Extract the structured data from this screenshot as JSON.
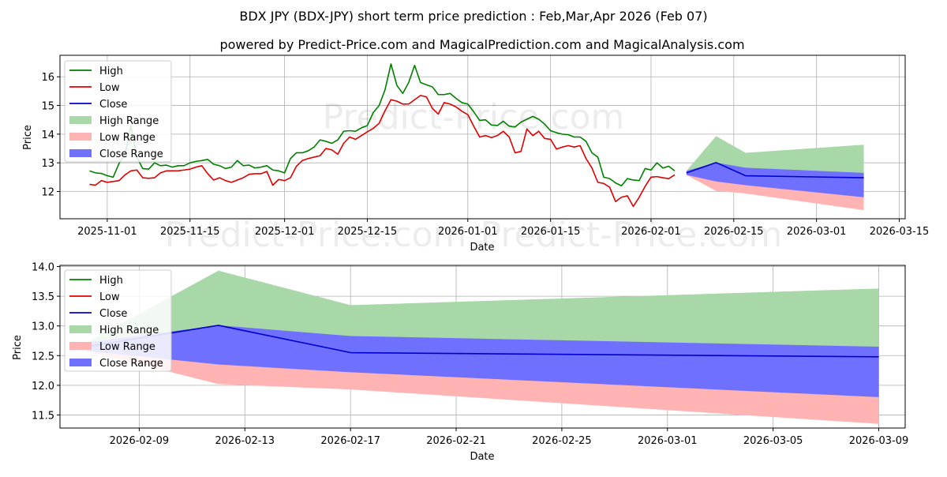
{
  "title": "BDX JPY (BDX-JPY) short term price prediction : Feb,Mar,Apr 2026 (Feb 07)",
  "subtitle": "powered by Predict-Price.com and MagicalPrediction.com and MagicalAnalysis.com",
  "watermark": "Predict-Price.com",
  "colors": {
    "high": "#008000",
    "low": "#e00000",
    "close": "#0000cc",
    "high_range": "#a8d8a8",
    "low_range": "#ffb3b3",
    "close_range": "#7070ff",
    "grid": "#b0b0b0"
  },
  "legend": [
    "High",
    "Low",
    "Close",
    "High Range",
    "Low Range",
    "Close Range"
  ],
  "chart_data": [
    {
      "type": "line",
      "name": "history-and-forecast",
      "xlabel": "Date",
      "ylabel": "Price",
      "x_start": "2025-10-29",
      "xlim": [
        "2025-10-24",
        "2026-03-16"
      ],
      "ylim": [
        11.05,
        16.75
      ],
      "xticks": [
        "2025-11-01",
        "2025-11-15",
        "2025-12-01",
        "2025-12-15",
        "2026-01-01",
        "2026-01-15",
        "2026-02-01",
        "2026-02-15",
        "2026-03-01",
        "2026-03-15"
      ],
      "yticks": [
        12,
        13,
        14,
        15,
        16
      ],
      "series": [
        {
          "name": "High",
          "values": [
            12.72,
            12.65,
            12.63,
            12.55,
            12.5,
            12.98,
            13.3,
            14.3,
            13.2,
            12.8,
            12.78,
            13.0,
            12.9,
            12.92,
            12.85,
            12.9,
            12.9,
            13.0,
            13.05,
            13.08,
            13.12,
            12.95,
            12.9,
            12.8,
            12.85,
            13.08,
            12.9,
            12.92,
            12.82,
            12.85,
            12.9,
            12.75,
            12.72,
            12.65,
            13.15,
            13.35,
            13.35,
            13.42,
            13.55,
            13.8,
            13.75,
            13.68,
            13.8,
            14.1,
            14.12,
            14.1,
            14.22,
            14.3,
            14.75,
            15.0,
            15.55,
            16.45,
            15.7,
            15.42,
            15.8,
            16.4,
            15.8,
            15.72,
            15.65,
            15.38,
            15.38,
            15.42,
            15.25,
            15.1,
            15.05,
            14.78,
            14.48,
            14.5,
            14.32,
            14.3,
            14.45,
            14.28,
            14.25,
            14.42,
            14.52,
            14.62,
            14.52,
            14.35,
            14.12,
            14.05,
            14.0,
            13.98,
            13.9,
            13.9,
            13.75,
            13.35,
            13.2,
            12.5,
            12.45,
            12.3,
            12.2,
            12.45,
            12.4,
            12.38,
            12.8,
            12.75,
            13.0,
            12.82,
            12.88,
            12.72
          ]
        },
        {
          "name": "Low",
          "values": [
            12.25,
            12.22,
            12.38,
            12.32,
            12.35,
            12.38,
            12.58,
            12.72,
            12.75,
            12.48,
            12.46,
            12.48,
            12.65,
            12.72,
            12.72,
            12.72,
            12.75,
            12.78,
            12.85,
            12.9,
            12.62,
            12.4,
            12.48,
            12.38,
            12.32,
            12.4,
            12.48,
            12.6,
            12.62,
            12.62,
            12.7,
            12.22,
            12.42,
            12.38,
            12.48,
            12.88,
            13.08,
            13.15,
            13.2,
            13.25,
            13.5,
            13.45,
            13.3,
            13.68,
            13.9,
            13.82,
            13.95,
            14.08,
            14.2,
            14.38,
            14.82,
            15.2,
            15.15,
            15.05,
            15.05,
            15.2,
            15.35,
            15.3,
            14.9,
            14.7,
            15.1,
            15.05,
            14.95,
            14.8,
            14.68,
            14.28,
            13.9,
            13.95,
            13.88,
            13.95,
            14.1,
            13.9,
            13.35,
            13.4,
            14.18,
            13.95,
            14.1,
            13.85,
            13.82,
            13.48,
            13.55,
            13.6,
            13.55,
            13.6,
            13.15,
            12.82,
            12.32,
            12.28,
            12.15,
            11.65,
            11.8,
            11.85,
            11.48,
            11.8,
            12.18,
            12.5,
            12.52,
            12.48,
            12.45,
            12.58
          ]
        },
        {
          "name": "Close",
          "x_dates": [
            "2026-02-07",
            "2026-02-12",
            "2026-02-17",
            "2026-03-09"
          ],
          "values": [
            12.65,
            13.01,
            12.55,
            12.48
          ]
        },
        {
          "name": "High Range",
          "x_dates": [
            "2026-02-07",
            "2026-02-12",
            "2026-02-17",
            "2026-03-09"
          ],
          "upper": [
            12.72,
            13.93,
            13.35,
            13.63
          ],
          "lower": [
            12.65,
            13.01,
            12.55,
            12.48
          ]
        },
        {
          "name": "Low Range",
          "x_dates": [
            "2026-02-07",
            "2026-02-12",
            "2026-02-17",
            "2026-03-09"
          ],
          "upper": [
            12.65,
            13.01,
            12.55,
            12.48
          ],
          "lower": [
            12.58,
            12.02,
            11.93,
            11.35
          ]
        },
        {
          "name": "Close Range",
          "x_dates": [
            "2026-02-07",
            "2026-02-12",
            "2026-02-17",
            "2026-03-09"
          ],
          "upper": [
            12.72,
            13.01,
            12.83,
            12.65
          ],
          "lower": [
            12.58,
            12.35,
            12.22,
            11.8
          ]
        }
      ]
    },
    {
      "type": "line",
      "name": "forecast-zoom",
      "xlabel": "Date",
      "ylabel": "Price",
      "xlim": [
        "2026-02-06",
        "2026-03-10"
      ],
      "ylim": [
        11.28,
        14.02
      ],
      "xticks": [
        "2026-02-09",
        "2026-02-13",
        "2026-02-17",
        "2026-02-21",
        "2026-02-25",
        "2026-03-01",
        "2026-03-05",
        "2026-03-09"
      ],
      "yticks": [
        11.5,
        12.0,
        12.5,
        13.0,
        13.5,
        14.0
      ],
      "reuses_series_from": "history-and-forecast"
    }
  ]
}
